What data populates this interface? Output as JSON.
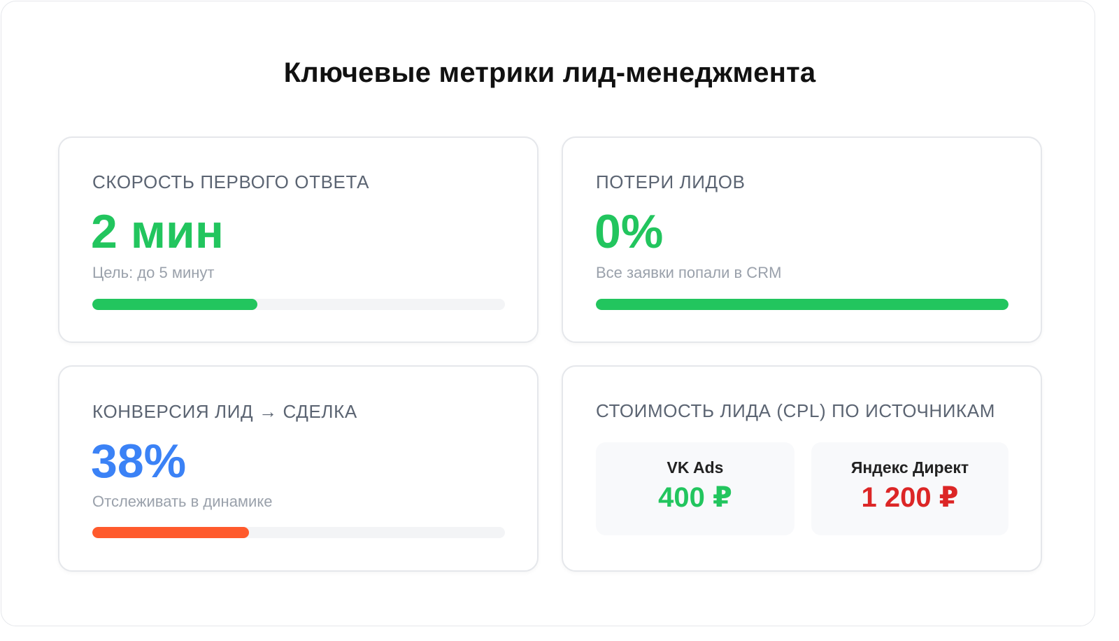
{
  "page": {
    "title": "Ключевые метрики лид-менеджмента"
  },
  "colors": {
    "green": "#22c55e",
    "blue": "#3b82f6",
    "orange": "#ff5a2c",
    "red": "#dc2626"
  },
  "cards": {
    "speed": {
      "label": "СКОРОСТЬ ПЕРВОГО ОТВЕТА",
      "value": "2 мин",
      "sub": "Цель: до 5 минут",
      "progress": 0.4
    },
    "loss": {
      "label": "ПОТЕРИ ЛИДОВ",
      "value": "0%",
      "sub": "Все заявки попали в CRM",
      "progress": 1.0
    },
    "conversion": {
      "label": "КОНВЕРСИЯ ЛИД → СДЕЛКА",
      "value": "38%",
      "sub": "Отслеживать в динамике",
      "progress": 0.38
    },
    "cpl": {
      "label": "СТОИМОСТЬ ЛИДА (CPL) ПО ИСТОЧНИКАМ",
      "sources": [
        {
          "name": "VK Ads",
          "value": "400 ₽",
          "color": "#22c55e"
        },
        {
          "name": "Яндекс Директ",
          "value": "1 200 ₽",
          "color": "#dc2626"
        }
      ]
    }
  }
}
